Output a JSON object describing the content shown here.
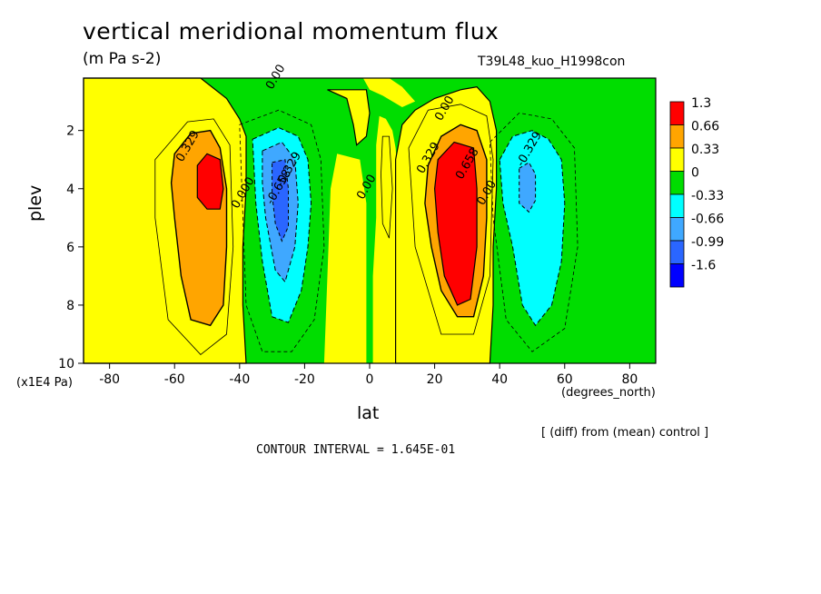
{
  "figure": {
    "title": "vertical meridional momentum flux",
    "units": "(m Pa s-2)",
    "run_label": "T39L48_kuo_H1998con",
    "note": "[ (diff) from (mean) control ]",
    "contour_interval": "CONTOUR INTERVAL = 1.645E-01",
    "y_unit": "(x1E4 Pa)",
    "x_unit": "(degrees_north)"
  },
  "chart_data": {
    "type": "heatmap",
    "title": "vertical meridional momentum flux",
    "xlabel": "lat",
    "ylabel": "plev",
    "xlim": [
      -88,
      88
    ],
    "ylim": [
      10,
      0.2
    ],
    "x_ticks": [
      -80,
      -60,
      -40,
      -20,
      0,
      20,
      40,
      60,
      80
    ],
    "y_ticks": [
      2,
      4,
      6,
      8,
      10
    ],
    "y_inverted": true,
    "legend": {
      "position": "right",
      "labels": [
        "1.3",
        "0.66",
        "0.33",
        "0",
        "-0.33",
        "-0.66",
        "-0.99",
        "-1.6"
      ],
      "colors": [
        "#ff0000",
        "#ffa500",
        "#ffff00",
        "#00dd00",
        "#00ffff",
        "#3fa8ff",
        "#2a66ff",
        "#0000ff"
      ]
    },
    "colors": {
      "c_pos3": "#ff0000",
      "c_pos2": "#ffa500",
      "c_pos1": "#ffff00",
      "c_neg1": "#00dd00",
      "c_neg2": "#00ffff",
      "c_neg3": "#3fa8ff",
      "c_neg4": "#2a66ff"
    },
    "contour_labels": [
      {
        "text": "0.00",
        "x": -28,
        "y": 0.22
      },
      {
        "text": "0.00",
        "x": 24,
        "y": 1.3
      },
      {
        "text": "0.329",
        "x": -55,
        "y": 2.6
      },
      {
        "text": "0.000",
        "x": -38,
        "y": 4.2
      },
      {
        "text": "-0.329",
        "x": -24,
        "y": 3.4
      },
      {
        "text": "-0.658",
        "x": -27,
        "y": 4.0
      },
      {
        "text": "0.00",
        "x": 0,
        "y": 4.0
      },
      {
        "text": "0.329",
        "x": 19,
        "y": 3.0
      },
      {
        "text": "0.658",
        "x": 31,
        "y": 3.2
      },
      {
        "text": "0.00",
        "x": 37,
        "y": 4.2
      },
      {
        "text": "-0.329",
        "x": 50,
        "y": 2.7
      }
    ],
    "extrema": [
      {
        "name": "SH positive max",
        "x": -48,
        "y": 3.8,
        "value": 1.3
      },
      {
        "name": "SH negative min",
        "x": -27,
        "y": 4.2,
        "value": -1.0
      },
      {
        "name": "NH positive max",
        "x": 28,
        "y": 4.5,
        "value": 1.5
      },
      {
        "name": "NH negative min",
        "x": 48,
        "y": 3.8,
        "value": -0.7
      }
    ]
  }
}
